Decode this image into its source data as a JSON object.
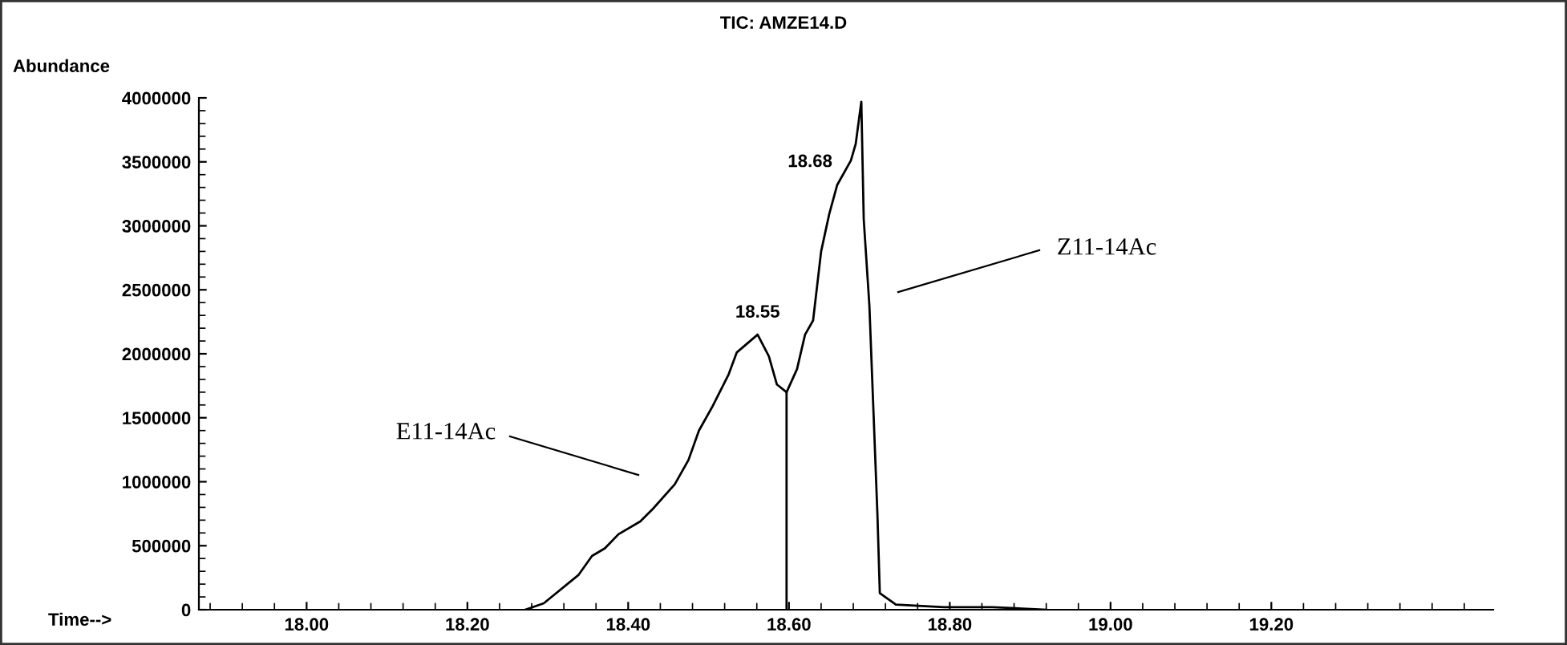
{
  "chart_data": {
    "type": "line",
    "title": "TIC: AMZE14.D",
    "ylabel": "Abundance",
    "xlabel": "Time-->",
    "series": [
      {
        "color": "#000000",
        "x": [
          18.272,
          18.295,
          18.338,
          18.355,
          18.371,
          18.388,
          18.415,
          18.431,
          18.458,
          18.475,
          18.488,
          18.505,
          18.525,
          18.535,
          18.561,
          18.575,
          18.585,
          18.597,
          18.61,
          18.62,
          18.63,
          18.64,
          18.65,
          18.66,
          18.677,
          18.683,
          18.69,
          18.693,
          18.7,
          18.71,
          18.713,
          18.733,
          18.793,
          18.853,
          18.92
        ],
        "values": [
          0,
          50000,
          270000,
          420000,
          480000,
          590000,
          690000,
          790000,
          980000,
          1170000,
          1400000,
          1590000,
          1840000,
          2010000,
          2150000,
          1980000,
          1760000,
          1700000,
          1880000,
          2150000,
          2260000,
          2800000,
          3090000,
          3320000,
          3510000,
          3640000,
          3970000,
          3050000,
          2380000,
          750000,
          130000,
          40000,
          20000,
          20000,
          0
        ]
      },
      {
        "color": "#000000",
        "x": [
          18.597,
          18.597
        ],
        "values": [
          0,
          1700000
        ]
      }
    ],
    "xlim": [
      17.866,
      19.476
    ],
    "xticks": [
      {
        "value": 18.0,
        "label": "18.00"
      },
      {
        "value": 18.2,
        "label": "18.20"
      },
      {
        "value": 18.4,
        "label": "18.40"
      },
      {
        "value": 18.6,
        "label": "18.60"
      },
      {
        "value": 18.8,
        "label": "18.80"
      },
      {
        "value": 19.0,
        "label": "19.00"
      },
      {
        "value": 19.2,
        "label": "19.20"
      }
    ],
    "ylim": [
      0,
      4000000
    ],
    "yticks": [
      0,
      500000,
      1000000,
      1500000,
      2000000,
      2500000,
      3000000,
      3500000,
      4000000
    ],
    "annotations": [
      {
        "text": "18.55",
        "x": 18.561,
        "y": 2150000
      },
      {
        "text": "18.68",
        "x": 18.69,
        "y": 3640000
      },
      "E11-14Ac",
      "Z11-14Ac"
    ],
    "grid": false,
    "marker": "none",
    "line_style": "solid"
  }
}
